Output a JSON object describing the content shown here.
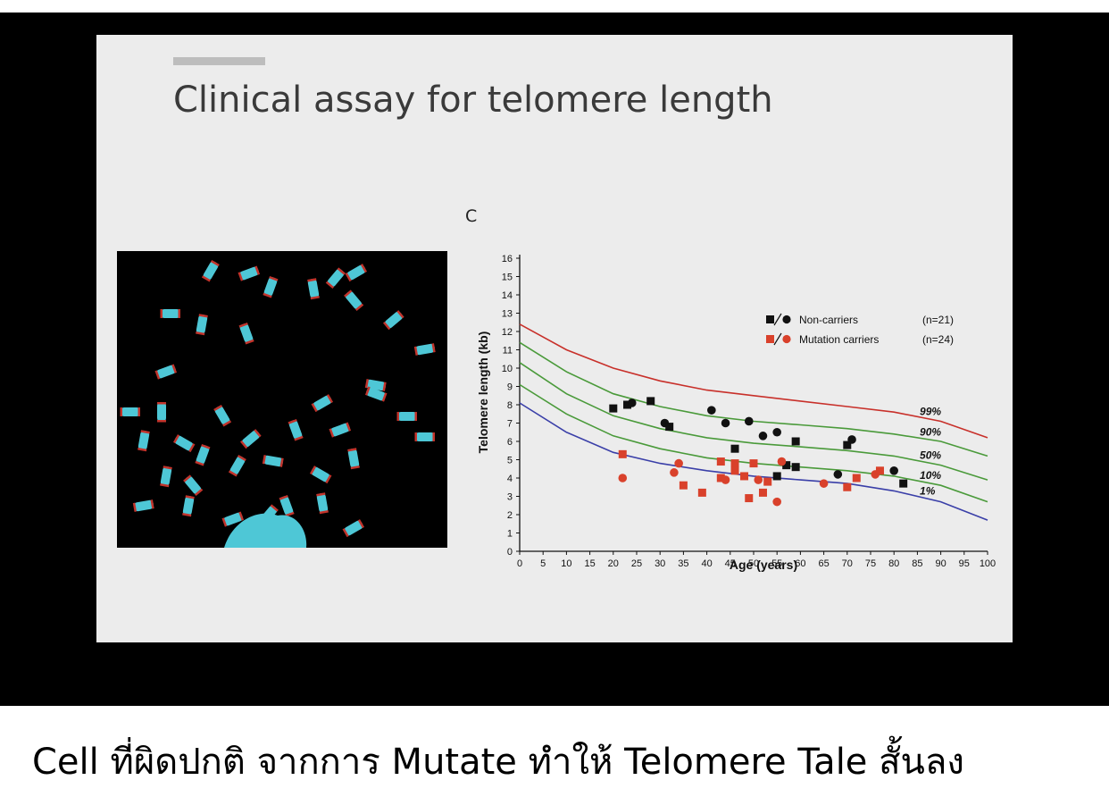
{
  "slide": {
    "title": "Clinical assay for telomere length",
    "panel_label": "C"
  },
  "caption": "Cell ที่ผิดปกติ จากการ Mutate ทำให้ Telomere Tale สั้นลง",
  "colors": {
    "non_carrier": "#111111",
    "mutation_carrier": "#d9412b",
    "p99": "#c8302a",
    "percentile_mid": "#4a9a3a",
    "p1": "#3a3fa8"
  },
  "chart_data": {
    "type": "scatter",
    "xlabel": "Age (years)",
    "ylabel": "Telomere length (kb)",
    "xlim": [
      0,
      100
    ],
    "ylim": [
      0,
      16
    ],
    "x_ticks": [
      0,
      5,
      10,
      15,
      20,
      25,
      30,
      35,
      40,
      45,
      50,
      55,
      60,
      65,
      70,
      75,
      80,
      85,
      90,
      95,
      100
    ],
    "y_ticks": [
      0,
      1,
      2,
      3,
      4,
      5,
      6,
      7,
      8,
      9,
      10,
      11,
      12,
      13,
      14,
      15,
      16
    ],
    "legend_position": "top-center",
    "legend": [
      {
        "label": "Non-carriers",
        "count": "(n=21)",
        "color": "#111111"
      },
      {
        "label": "Mutation carriers",
        "count": "(n=24)",
        "color": "#d9412b"
      }
    ],
    "percentile_curves": [
      {
        "name": "99%",
        "color": "#c8302a",
        "x": [
          0,
          10,
          20,
          30,
          40,
          50,
          60,
          70,
          80,
          90,
          100
        ],
        "y": [
          12.4,
          11.0,
          10.0,
          9.3,
          8.8,
          8.5,
          8.2,
          7.9,
          7.6,
          7.1,
          6.2
        ]
      },
      {
        "name": "90%",
        "color": "#4a9a3a",
        "x": [
          0,
          10,
          20,
          30,
          40,
          50,
          60,
          70,
          80,
          90,
          100
        ],
        "y": [
          11.4,
          9.8,
          8.6,
          7.9,
          7.4,
          7.1,
          6.9,
          6.7,
          6.4,
          6.0,
          5.2
        ]
      },
      {
        "name": "50%",
        "color": "#4a9a3a",
        "x": [
          0,
          10,
          20,
          30,
          40,
          50,
          60,
          70,
          80,
          90,
          100
        ],
        "y": [
          10.3,
          8.6,
          7.4,
          6.7,
          6.2,
          5.9,
          5.7,
          5.5,
          5.2,
          4.7,
          3.9
        ]
      },
      {
        "name": "10%",
        "color": "#4a9a3a",
        "x": [
          0,
          10,
          20,
          30,
          40,
          50,
          60,
          70,
          80,
          90,
          100
        ],
        "y": [
          9.1,
          7.5,
          6.3,
          5.6,
          5.1,
          4.8,
          4.6,
          4.4,
          4.1,
          3.6,
          2.7
        ]
      },
      {
        "name": "1%",
        "color": "#3a3fa8",
        "x": [
          0,
          10,
          20,
          30,
          40,
          50,
          60,
          70,
          80,
          90,
          100
        ],
        "y": [
          8.1,
          6.5,
          5.4,
          4.8,
          4.4,
          4.1,
          3.9,
          3.7,
          3.3,
          2.7,
          1.7
        ]
      }
    ],
    "series": [
      {
        "name": "Non-carriers",
        "color": "#111111",
        "points": [
          {
            "x": 20,
            "y": 7.8,
            "m": "square"
          },
          {
            "x": 23,
            "y": 8.0,
            "m": "square"
          },
          {
            "x": 24,
            "y": 8.1,
            "m": "circle"
          },
          {
            "x": 28,
            "y": 8.2,
            "m": "square"
          },
          {
            "x": 31,
            "y": 7.0,
            "m": "circle"
          },
          {
            "x": 32,
            "y": 6.8,
            "m": "square"
          },
          {
            "x": 41,
            "y": 7.7,
            "m": "circle"
          },
          {
            "x": 44,
            "y": 7.0,
            "m": "circle"
          },
          {
            "x": 46,
            "y": 5.6,
            "m": "square"
          },
          {
            "x": 49,
            "y": 7.1,
            "m": "circle"
          },
          {
            "x": 52,
            "y": 6.3,
            "m": "circle"
          },
          {
            "x": 55,
            "y": 6.5,
            "m": "circle"
          },
          {
            "x": 55,
            "y": 4.1,
            "m": "square"
          },
          {
            "x": 57,
            "y": 4.7,
            "m": "square"
          },
          {
            "x": 59,
            "y": 6.0,
            "m": "square"
          },
          {
            "x": 59,
            "y": 4.6,
            "m": "square"
          },
          {
            "x": 68,
            "y": 4.2,
            "m": "circle"
          },
          {
            "x": 70,
            "y": 5.8,
            "m": "square"
          },
          {
            "x": 71,
            "y": 6.1,
            "m": "circle"
          },
          {
            "x": 80,
            "y": 4.4,
            "m": "circle"
          },
          {
            "x": 82,
            "y": 3.7,
            "m": "square"
          }
        ]
      },
      {
        "name": "Mutation carriers",
        "color": "#d9412b",
        "points": [
          {
            "x": 22,
            "y": 5.3,
            "m": "square"
          },
          {
            "x": 22,
            "y": 4.0,
            "m": "circle"
          },
          {
            "x": 33,
            "y": 4.3,
            "m": "circle"
          },
          {
            "x": 34,
            "y": 4.8,
            "m": "circle"
          },
          {
            "x": 35,
            "y": 3.6,
            "m": "square"
          },
          {
            "x": 39,
            "y": 3.2,
            "m": "square"
          },
          {
            "x": 43,
            "y": 4.9,
            "m": "square"
          },
          {
            "x": 43,
            "y": 4.0,
            "m": "square"
          },
          {
            "x": 44,
            "y": 3.9,
            "m": "circle"
          },
          {
            "x": 46,
            "y": 4.8,
            "m": "square"
          },
          {
            "x": 46,
            "y": 4.4,
            "m": "square"
          },
          {
            "x": 48,
            "y": 4.1,
            "m": "square"
          },
          {
            "x": 49,
            "y": 2.9,
            "m": "square"
          },
          {
            "x": 50,
            "y": 4.8,
            "m": "square"
          },
          {
            "x": 51,
            "y": 3.9,
            "m": "circle"
          },
          {
            "x": 52,
            "y": 3.2,
            "m": "square"
          },
          {
            "x": 53,
            "y": 3.8,
            "m": "square"
          },
          {
            "x": 55,
            "y": 2.7,
            "m": "circle"
          },
          {
            "x": 56,
            "y": 4.9,
            "m": "circle"
          },
          {
            "x": 65,
            "y": 3.7,
            "m": "circle"
          },
          {
            "x": 70,
            "y": 3.5,
            "m": "square"
          },
          {
            "x": 72,
            "y": 4.0,
            "m": "square"
          },
          {
            "x": 76,
            "y": 4.2,
            "m": "circle"
          },
          {
            "x": 77,
            "y": 4.4,
            "m": "square"
          }
        ]
      }
    ]
  }
}
